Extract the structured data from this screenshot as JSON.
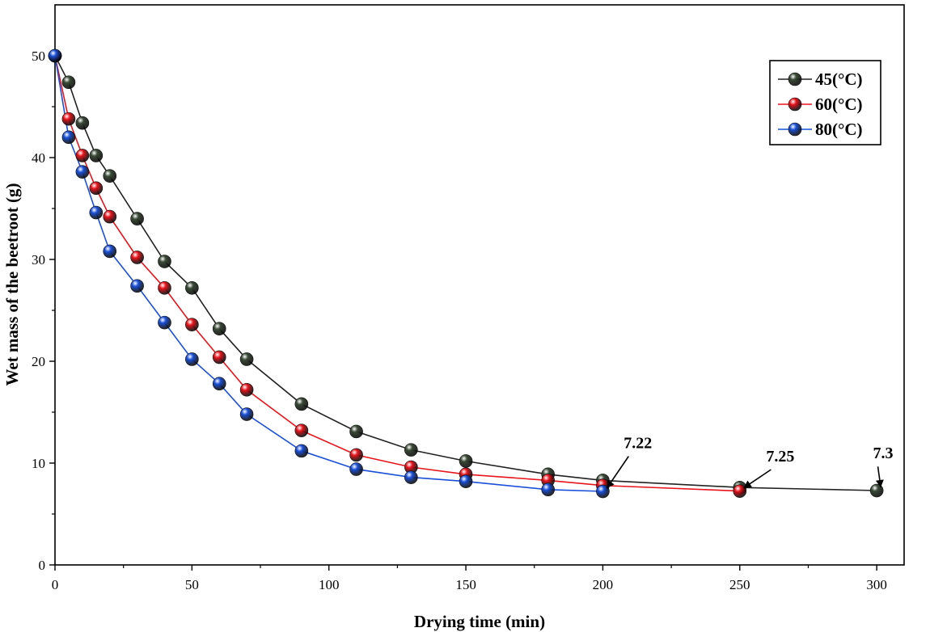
{
  "chart_data": {
    "type": "line",
    "title": "",
    "xlabel": "Drying time (min)",
    "ylabel": "Wet mass of the beetroot (g)",
    "xlim": [
      0,
      310
    ],
    "ylim": [
      0,
      55
    ],
    "xticks": [
      0,
      50,
      100,
      150,
      200,
      250,
      300
    ],
    "yticks": [
      0,
      10,
      20,
      30,
      40,
      50
    ],
    "grid": false,
    "legend_position": "top-right",
    "series": [
      {
        "name": "45(°C)",
        "color": "#222222",
        "marker_color": "#3a4a36",
        "x": [
          0,
          5,
          10,
          15,
          20,
          30,
          40,
          50,
          60,
          70,
          90,
          110,
          130,
          150,
          180,
          200,
          250,
          300
        ],
        "y": [
          50,
          47.4,
          43.4,
          40.2,
          38.2,
          34.0,
          29.8,
          27.2,
          23.2,
          20.2,
          15.8,
          13.1,
          11.3,
          10.2,
          8.9,
          8.3,
          7.6,
          7.3
        ]
      },
      {
        "name": "60(°C)",
        "color": "#e8141c",
        "marker_color": "#e8141c",
        "x": [
          0,
          5,
          10,
          15,
          20,
          30,
          40,
          50,
          60,
          70,
          90,
          110,
          130,
          150,
          180,
          200,
          250
        ],
        "y": [
          50,
          43.8,
          40.2,
          37.0,
          34.2,
          30.2,
          27.2,
          23.6,
          20.4,
          17.2,
          13.2,
          10.8,
          9.6,
          8.9,
          8.3,
          7.8,
          7.25
        ]
      },
      {
        "name": "80(°C)",
        "color": "#1a50d8",
        "marker_color": "#1a50d8",
        "x": [
          0,
          5,
          10,
          15,
          20,
          30,
          40,
          50,
          60,
          70,
          90,
          110,
          130,
          150,
          180,
          200
        ],
        "y": [
          50,
          42.0,
          38.6,
          34.6,
          30.8,
          27.4,
          23.8,
          20.2,
          17.8,
          14.8,
          11.2,
          9.4,
          8.6,
          8.2,
          7.4,
          7.22
        ]
      }
    ],
    "annotations": [
      {
        "text": "7.22",
        "x": 200,
        "y": 7.22,
        "text_x": 210,
        "text_y": 11.3
      },
      {
        "text": "7.25",
        "x": 250,
        "y": 7.25,
        "text_x": 262,
        "text_y": 10.0
      },
      {
        "text": "7.3",
        "x": 300,
        "y": 7.3,
        "text_x": 301,
        "text_y": 10.3
      }
    ]
  }
}
